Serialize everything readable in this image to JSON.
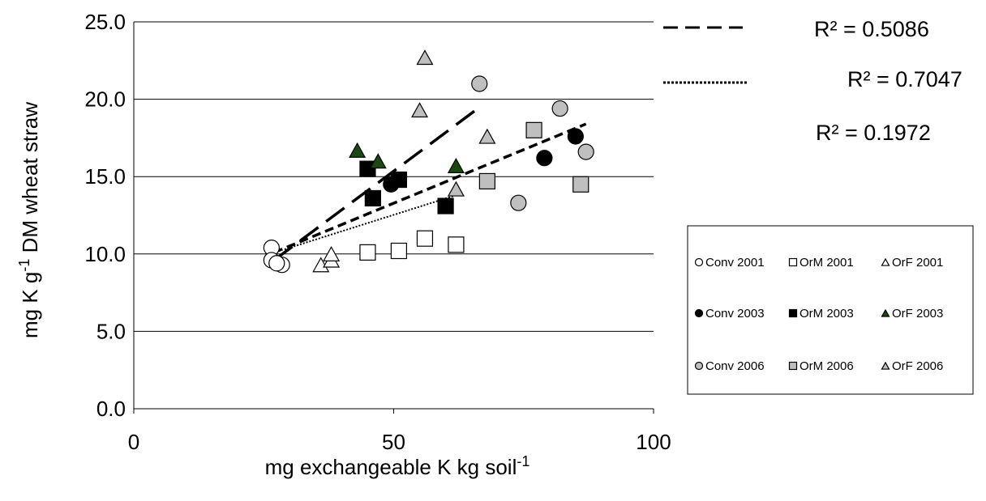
{
  "chart_data": {
    "type": "scatter",
    "title": "",
    "xlabel": "mg exchangeable K  kg soil",
    "xlabel_sup": "-1",
    "ylabel_main": "mg K g",
    "ylabel_sup": "-1",
    "ylabel_rest": " DM wheat straw",
    "xlim": [
      0,
      100
    ],
    "ylim": [
      0,
      25
    ],
    "x_ticks": [
      "0",
      "50",
      "100"
    ],
    "y_ticks": [
      "0.0",
      "5.0",
      "10.0",
      "15.0",
      "20.0",
      "25.0"
    ],
    "grid": "horizontal",
    "legend_position": "right",
    "series": [
      {
        "name": "Conv  2001",
        "marker": "circle",
        "fill": "#ffffff",
        "points": [
          [
            26.5,
            10.4
          ],
          [
            26.5,
            9.6
          ],
          [
            28.5,
            9.3
          ],
          [
            27.5,
            9.4
          ]
        ]
      },
      {
        "name": "OrM 2001",
        "marker": "square",
        "fill": "#ffffff",
        "points": [
          [
            45,
            10.1
          ],
          [
            51,
            10.2
          ],
          [
            56,
            11.0
          ],
          [
            62,
            10.6
          ]
        ]
      },
      {
        "name": "OrF 2001",
        "marker": "triangle",
        "fill": "#ffffff",
        "points": [
          [
            36,
            9.3
          ],
          [
            38,
            9.6
          ],
          [
            38,
            10.0
          ]
        ]
      },
      {
        "name": "Conv  2003",
        "marker": "circle",
        "fill": "#000000",
        "points": [
          [
            49.5,
            14.5
          ],
          [
            79,
            16.2
          ],
          [
            85,
            17.6
          ]
        ]
      },
      {
        "name": "OrM 2003",
        "marker": "square",
        "fill": "#000000",
        "points": [
          [
            45,
            15.5
          ],
          [
            46,
            13.6
          ],
          [
            51,
            14.8
          ],
          [
            60,
            13.1
          ]
        ]
      },
      {
        "name": "OrF 2003",
        "marker": "triangle",
        "fill": "#1a4a12",
        "points": [
          [
            43,
            16.7
          ],
          [
            47,
            16.0
          ],
          [
            62,
            15.7
          ]
        ]
      },
      {
        "name": "Conv  2006",
        "marker": "circle",
        "fill": "#bfbfbf",
        "points": [
          [
            66.5,
            21.0
          ],
          [
            74,
            13.3
          ],
          [
            82,
            19.4
          ],
          [
            87,
            16.6
          ]
        ]
      },
      {
        "name": "OrM 2006",
        "marker": "square",
        "fill": "#bfbfbf",
        "points": [
          [
            68,
            14.7
          ],
          [
            77,
            18.0
          ],
          [
            86,
            14.5
          ]
        ]
      },
      {
        "name": "OrF 2006",
        "marker": "triangle",
        "fill": "#bfbfbf",
        "points": [
          [
            56,
            22.7
          ],
          [
            55,
            19.3
          ],
          [
            68,
            17.6
          ],
          [
            62,
            14.2
          ]
        ]
      }
    ],
    "trendlines": [
      {
        "style": "long-dash",
        "from": [
          27,
          9.6
        ],
        "to": [
          67,
          19.6
        ]
      },
      {
        "style": "short-dash",
        "from": [
          27,
          10.1
        ],
        "to": [
          87,
          18.4
        ]
      },
      {
        "style": "dotted",
        "from": [
          29,
          10.3
        ],
        "to": [
          62,
          13.8
        ]
      }
    ],
    "r2_labels": [
      {
        "text": "R² = 0.5086",
        "line": "long-dash"
      },
      {
        "text": "R² = 0.7047",
        "line": "dotted"
      },
      {
        "text": "R² = 0.1972",
        "line": "none"
      }
    ]
  }
}
